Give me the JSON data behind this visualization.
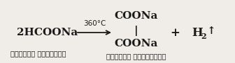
{
  "bg_color": "#f0ede8",
  "reactant": "2HCOONa",
  "reactant_sub": "सोडियम फॉर्मेट",
  "condition": "360°C",
  "product_top": "COONa",
  "product_bar": "|",
  "product_bottom": "COONa",
  "product_sub": "सोडियम ऑक्सैलेट",
  "plus": "+",
  "byproduct_h": "H",
  "byproduct_2": "2",
  "byproduct_arrow": "↑",
  "text_color": "#1a1a1a",
  "arrow_color": "#1a1a1a",
  "fs_main": 11,
  "fs_sub": 7,
  "fs_cond": 7.5,
  "fs_plus": 12,
  "fs_byproduct": 12,
  "fs_arrow": 11
}
